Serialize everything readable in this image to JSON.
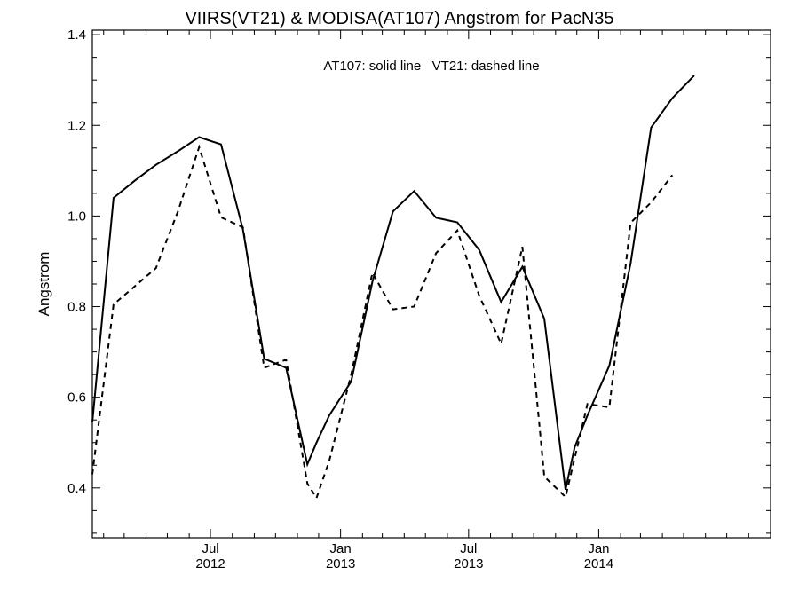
{
  "chart_data": {
    "type": "line",
    "title": "VIIRS(VT21) & MODISA(AT107)  Angstrom for PacN35",
    "ylabel": "Angstrom",
    "xlabel": "",
    "annotation": "AT107: solid line   VT21: dashed line",
    "x_axis": {
      "min": "2012-01-16",
      "max": "2014-09-01",
      "ticks": [
        {
          "date": "2012-07-01",
          "month": "Jul",
          "year": "2012"
        },
        {
          "date": "2013-01-01",
          "month": "Jan",
          "year": "2013"
        },
        {
          "date": "2013-07-01",
          "month": "Jul",
          "year": "2013"
        },
        {
          "date": "2014-01-01",
          "month": "Jan",
          "year": "2014"
        }
      ]
    },
    "ylim": [
      0.29,
      1.41
    ],
    "yticks": [
      0.4,
      0.6,
      0.8,
      1.0,
      1.2,
      1.4
    ],
    "ytick_labels": [
      "0.4",
      "0.6",
      "0.8",
      "1.0",
      "1.2",
      "1.4"
    ],
    "grid": false,
    "series": [
      {
        "name": "AT107",
        "style": "solid",
        "color": "#000000",
        "points": [
          {
            "x": "2012-01-16",
            "y": 0.545
          },
          {
            "x": "2012-02-15",
            "y": 1.04
          },
          {
            "x": "2012-03-16",
            "y": 1.078
          },
          {
            "x": "2012-04-15",
            "y": 1.113
          },
          {
            "x": "2012-05-16",
            "y": 1.143
          },
          {
            "x": "2012-06-15",
            "y": 1.174
          },
          {
            "x": "2012-07-16",
            "y": 1.158
          },
          {
            "x": "2012-08-16",
            "y": 0.97
          },
          {
            "x": "2012-09-15",
            "y": 0.685
          },
          {
            "x": "2012-10-16",
            "y": 0.665
          },
          {
            "x": "2012-11-15",
            "y": 0.452
          },
          {
            "x": "2012-11-28",
            "y": 0.5
          },
          {
            "x": "2012-12-16",
            "y": 0.56
          },
          {
            "x": "2013-01-16",
            "y": 0.635
          },
          {
            "x": "2013-02-15",
            "y": 0.855
          },
          {
            "x": "2013-03-16",
            "y": 1.01
          },
          {
            "x": "2013-04-15",
            "y": 1.055
          },
          {
            "x": "2013-05-16",
            "y": 0.996
          },
          {
            "x": "2013-06-15",
            "y": 0.986
          },
          {
            "x": "2013-07-16",
            "y": 0.925
          },
          {
            "x": "2013-08-16",
            "y": 0.81
          },
          {
            "x": "2013-09-15",
            "y": 0.888
          },
          {
            "x": "2013-10-16",
            "y": 0.773
          },
          {
            "x": "2013-11-15",
            "y": 0.396
          },
          {
            "x": "2013-11-28",
            "y": 0.49
          },
          {
            "x": "2013-12-16",
            "y": 0.56
          },
          {
            "x": "2014-01-16",
            "y": 0.67
          },
          {
            "x": "2014-02-15",
            "y": 0.895
          },
          {
            "x": "2014-03-16",
            "y": 1.195
          },
          {
            "x": "2014-04-15",
            "y": 1.26
          },
          {
            "x": "2014-05-16",
            "y": 1.31
          }
        ]
      },
      {
        "name": "VT21",
        "style": "dashed",
        "color": "#000000",
        "points": [
          {
            "x": "2012-01-16",
            "y": 0.43
          },
          {
            "x": "2012-02-15",
            "y": 0.805
          },
          {
            "x": "2012-03-16",
            "y": 0.845
          },
          {
            "x": "2012-04-15",
            "y": 0.885
          },
          {
            "x": "2012-05-16",
            "y": 1.01
          },
          {
            "x": "2012-06-15",
            "y": 1.152
          },
          {
            "x": "2012-07-16",
            "y": 0.997
          },
          {
            "x": "2012-08-16",
            "y": 0.975
          },
          {
            "x": "2012-09-15",
            "y": 0.665
          },
          {
            "x": "2012-10-16",
            "y": 0.683
          },
          {
            "x": "2012-11-15",
            "y": 0.41
          },
          {
            "x": "2012-11-28",
            "y": 0.378
          },
          {
            "x": "2012-12-16",
            "y": 0.46
          },
          {
            "x": "2013-01-16",
            "y": 0.65
          },
          {
            "x": "2013-02-15",
            "y": 0.875
          },
          {
            "x": "2013-03-16",
            "y": 0.794
          },
          {
            "x": "2013-04-15",
            "y": 0.8
          },
          {
            "x": "2013-05-16",
            "y": 0.918
          },
          {
            "x": "2013-06-15",
            "y": 0.968
          },
          {
            "x": "2013-07-16",
            "y": 0.824
          },
          {
            "x": "2013-08-16",
            "y": 0.718
          },
          {
            "x": "2013-09-15",
            "y": 0.932
          },
          {
            "x": "2013-10-16",
            "y": 0.425
          },
          {
            "x": "2013-11-15",
            "y": 0.38
          },
          {
            "x": "2013-12-16",
            "y": 0.585
          },
          {
            "x": "2014-01-16",
            "y": 0.578
          },
          {
            "x": "2014-02-15",
            "y": 0.985
          },
          {
            "x": "2014-03-16",
            "y": 1.03
          },
          {
            "x": "2014-04-15",
            "y": 1.09
          }
        ]
      }
    ]
  }
}
